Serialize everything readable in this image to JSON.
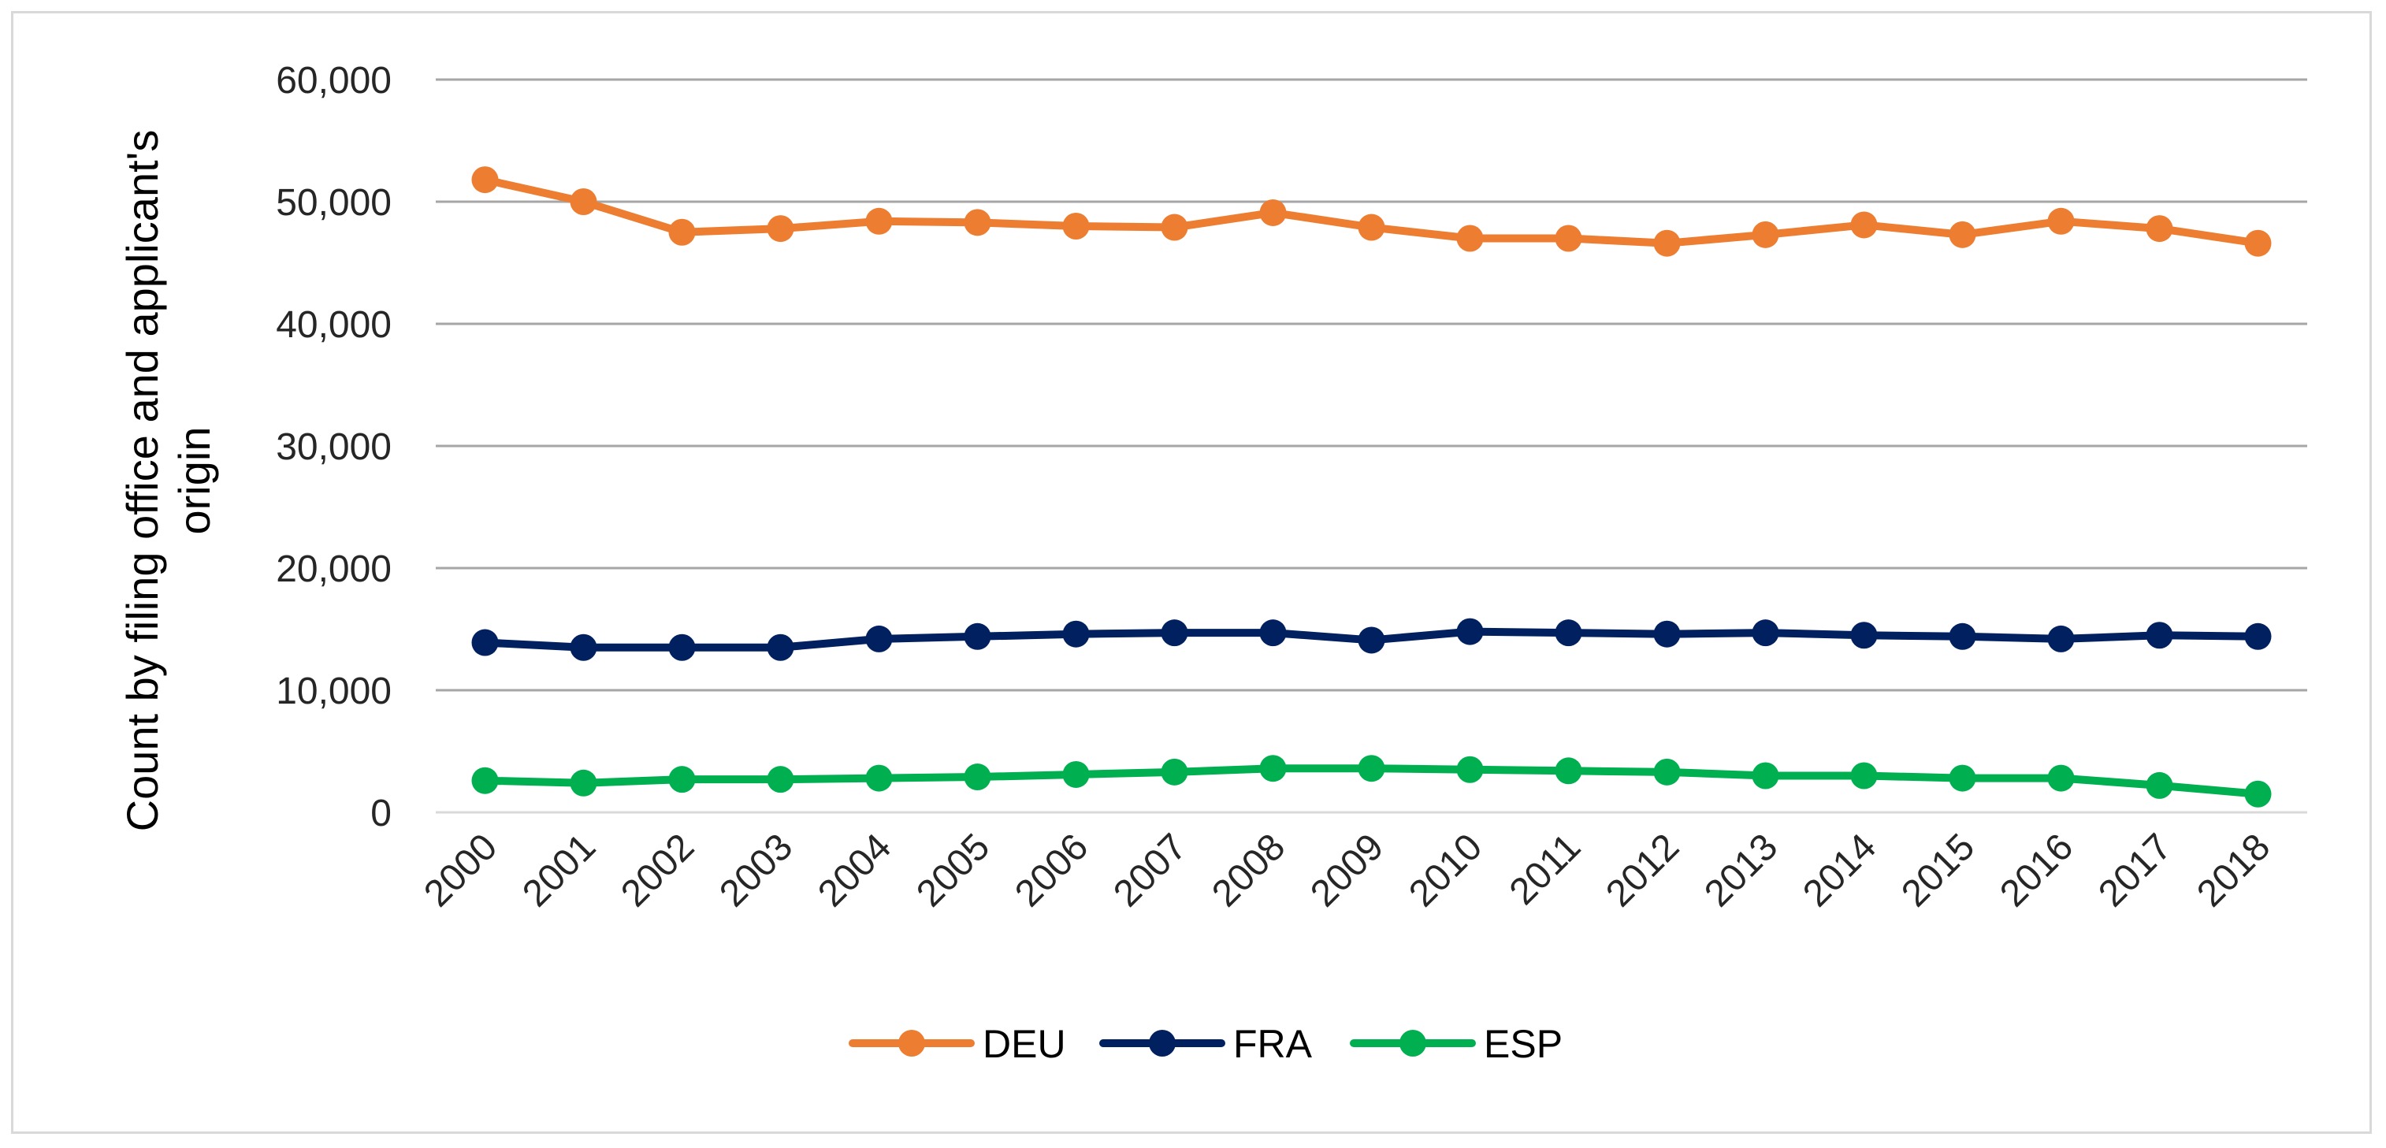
{
  "chart_data": {
    "type": "line",
    "title": "",
    "xlabel": "",
    "ylabel": "Count by filing office and applicant's origin",
    "ylabel_lines": [
      "Count by filing office and applicant's",
      "origin"
    ],
    "ylim": [
      0,
      60000
    ],
    "yticks": [
      0,
      10000,
      20000,
      30000,
      40000,
      50000,
      60000
    ],
    "ytick_labels": [
      "0",
      "10,000",
      "20,000",
      "30,000",
      "40,000",
      "50,000",
      "60,000"
    ],
    "grid": true,
    "legend_position": "bottom",
    "categories": [
      "2000",
      "2001",
      "2002",
      "2003",
      "2004",
      "2005",
      "2006",
      "2007",
      "2008",
      "2009",
      "2010",
      "2011",
      "2012",
      "2013",
      "2014",
      "2015",
      "2016",
      "2017",
      "2018"
    ],
    "series": [
      {
        "name": "DEU",
        "color": "#ED7D31",
        "values": [
          51800,
          50000,
          47500,
          47800,
          48400,
          48300,
          48000,
          47900,
          49100,
          47900,
          47000,
          47000,
          46600,
          47300,
          48100,
          47300,
          48400,
          47800,
          46600
        ]
      },
      {
        "name": "FRA",
        "color": "#002060",
        "values": [
          13900,
          13500,
          13500,
          13500,
          14200,
          14400,
          14600,
          14700,
          14700,
          14100,
          14800,
          14700,
          14600,
          14700,
          14500,
          14400,
          14200,
          14500,
          14400
        ]
      },
      {
        "name": "ESP",
        "color": "#00B050",
        "values": [
          2600,
          2400,
          2700,
          2700,
          2800,
          2900,
          3100,
          3300,
          3600,
          3600,
          3500,
          3400,
          3300,
          3000,
          3000,
          2800,
          2800,
          2200,
          1500
        ]
      }
    ]
  }
}
